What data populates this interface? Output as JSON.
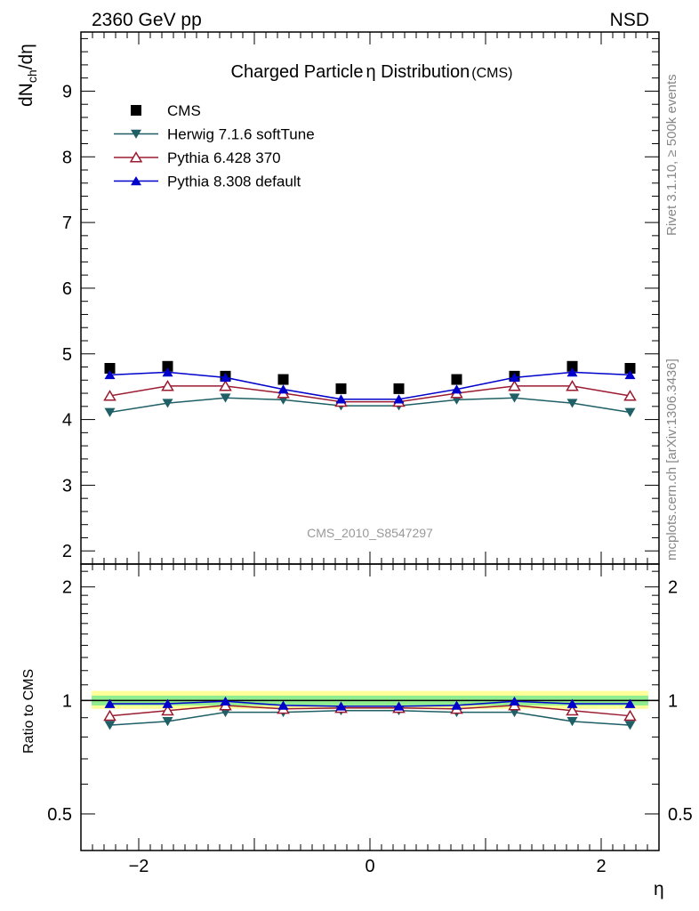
{
  "header": {
    "energy_label": "2360 GeV pp",
    "process_label": "NSD",
    "title_main": "Charged Particle",
    "title_eta": "η",
    "title_rest": " Distribution",
    "title_exp": "(CMS)",
    "side_rivet": "Rivet 3.1.10, ≥ 500k events",
    "side_mcplots": "mcplots.cern.ch [arXiv:1306.3436]",
    "watermark": "CMS_2010_S8547297"
  },
  "chart_data": [
    {
      "type": "scatter",
      "panel": "main",
      "ylabel_main": "dN",
      "ylabel_sub": "ch",
      "ylabel_tail": "/dη",
      "xlabel": "η",
      "xlim": [
        -2.5,
        2.5
      ],
      "ylim": [
        1.8,
        9.9
      ],
      "yticks": [
        "2",
        "3",
        "4",
        "5",
        "6",
        "7",
        "8",
        "9"
      ],
      "ytick_values": [
        2,
        3,
        4,
        5,
        6,
        7,
        8,
        9
      ],
      "x": [
        -2.25,
        -1.75,
        -1.25,
        -0.75,
        -0.25,
        0.25,
        0.75,
        1.25,
        1.75,
        2.25
      ],
      "series": [
        {
          "name": "CMS",
          "marker": "square",
          "color": "#000000",
          "values": [
            4.78,
            4.81,
            4.66,
            4.61,
            4.47,
            4.47,
            4.61,
            4.66,
            4.81,
            4.78
          ]
        },
        {
          "name": "Herwig 7.1.6 softTune",
          "marker": "triangle-down",
          "color": "#1f5f66",
          "values": [
            4.11,
            4.25,
            4.33,
            4.3,
            4.21,
            4.21,
            4.3,
            4.33,
            4.25,
            4.11
          ]
        },
        {
          "name": "Pythia 6.428 370",
          "marker": "triangle-up-open",
          "color": "#9b1b30",
          "values": [
            4.36,
            4.51,
            4.51,
            4.4,
            4.27,
            4.27,
            4.4,
            4.51,
            4.51,
            4.36
          ]
        },
        {
          "name": "Pythia 8.308 default",
          "marker": "triangle-up",
          "color": "#0000cc",
          "values": [
            4.68,
            4.72,
            4.64,
            4.46,
            4.31,
            4.31,
            4.46,
            4.64,
            4.72,
            4.68
          ]
        }
      ],
      "legend_position": "top-left"
    },
    {
      "type": "scatter",
      "panel": "ratio",
      "ylabel": "Ratio to CMS",
      "xlabel": "η",
      "xlim": [
        -2.5,
        2.5
      ],
      "ylim": [
        0.4,
        2.3
      ],
      "yscale": "log",
      "yticks": [
        "0.5",
        "1",
        "2"
      ],
      "ytick_values": [
        0.5,
        1,
        2
      ],
      "xticks": [
        "−2",
        "0",
        "2"
      ],
      "xtick_values": [
        -2,
        0,
        2
      ],
      "band_stat_sys": [
        0.95,
        1.06
      ],
      "band_stat": [
        0.97,
        1.03
      ],
      "band_stat_color": "#90ee90",
      "band_sys_color": "#ffff99",
      "x": [
        -2.25,
        -1.75,
        -1.25,
        -0.75,
        -0.25,
        0.25,
        0.75,
        1.25,
        1.75,
        2.25
      ],
      "series": [
        {
          "name": "Herwig 7.1.6 softTune",
          "color": "#1f5f66",
          "values": [
            0.86,
            0.88,
            0.93,
            0.93,
            0.94,
            0.94,
            0.93,
            0.93,
            0.88,
            0.86
          ]
        },
        {
          "name": "Pythia 6.428 370",
          "color": "#9b1b30",
          "values": [
            0.91,
            0.94,
            0.97,
            0.95,
            0.955,
            0.955,
            0.95,
            0.97,
            0.94,
            0.91
          ]
        },
        {
          "name": "Pythia 8.308 default",
          "color": "#0000cc",
          "values": [
            0.98,
            0.98,
            0.995,
            0.97,
            0.965,
            0.965,
            0.97,
            0.995,
            0.98,
            0.98
          ]
        }
      ]
    }
  ]
}
